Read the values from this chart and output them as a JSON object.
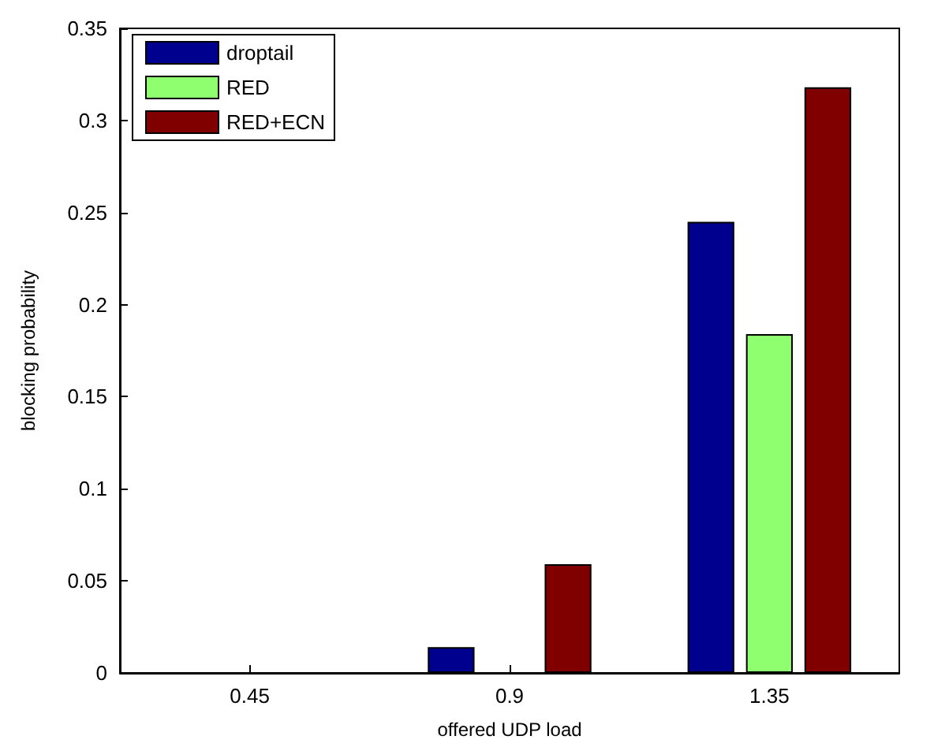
{
  "chart_data": {
    "type": "bar",
    "xlabel": "offered UDP load",
    "ylabel": "blocking probability",
    "categories": [
      "0.45",
      "0.9",
      "1.35"
    ],
    "series": [
      {
        "name": "droptail",
        "color": "#00008f",
        "values": [
          0,
          0.014,
          0.245
        ]
      },
      {
        "name": "RED",
        "color": "#8fff70",
        "values": [
          0,
          0,
          0.184
        ]
      },
      {
        "name": "RED+ECN",
        "color": "#800000",
        "values": [
          0,
          0.059,
          0.318
        ]
      }
    ],
    "ylim": [
      0,
      0.35
    ],
    "yticks": [
      0,
      0.05,
      0.1,
      0.15,
      0.2,
      0.25,
      0.3,
      0.35
    ],
    "grid": false,
    "legend": "top left"
  }
}
